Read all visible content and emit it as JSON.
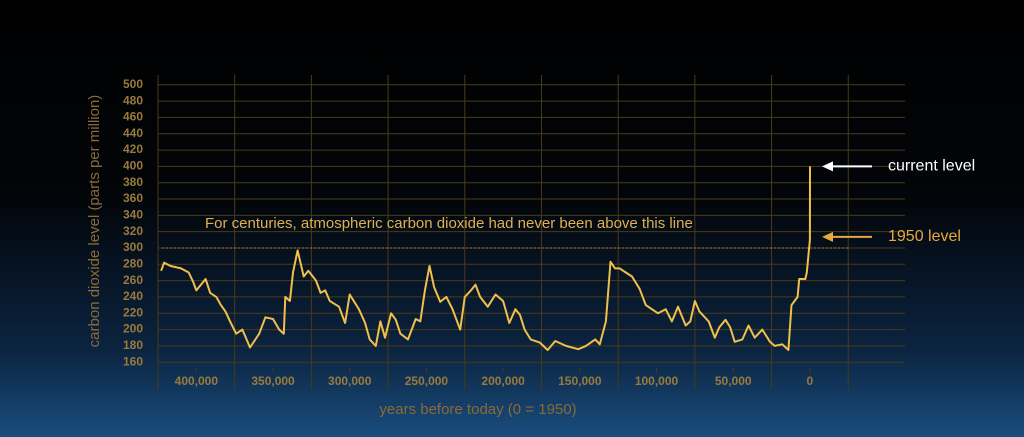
{
  "chart_data": {
    "type": "line",
    "x_label": "years before today (0 = 1950)",
    "y_label": "carbon dioxide level (parts per million)",
    "x": [
      423000,
      421000,
      417000,
      410000,
      405000,
      402000,
      400000,
      394000,
      391000,
      387000,
      384000,
      381000,
      378000,
      374000,
      370000,
      365000,
      359000,
      355000,
      350000,
      346000,
      343000,
      342000,
      339000,
      337000,
      334000,
      330000,
      327000,
      322000,
      319000,
      316000,
      313000,
      307000,
      303000,
      300000,
      294000,
      290000,
      287000,
      283000,
      280000,
      277000,
      273000,
      270000,
      267000,
      262000,
      257000,
      254000,
      251000,
      248000,
      245000,
      241000,
      237000,
      233000,
      228000,
      225000,
      221000,
      218000,
      215000,
      210000,
      205000,
      200000,
      196000,
      192000,
      189000,
      186000,
      182000,
      176000,
      171000,
      166000,
      159000,
      151000,
      146000,
      140000,
      137000,
      133000,
      130000,
      127000,
      124000,
      120000,
      116000,
      111000,
      107000,
      103000,
      99000,
      94000,
      90000,
      86000,
      81000,
      78000,
      75000,
      72000,
      66000,
      62000,
      59000,
      55000,
      52000,
      49000,
      44000,
      40000,
      36000,
      31000,
      26000,
      23000,
      18000,
      14000,
      12000,
      8000,
      7000,
      3000,
      2000,
      0,
      -65
    ],
    "series": [
      {
        "name": "carbon dioxide",
        "color": "#f0c04a",
        "values": [
          272,
          282,
          278,
          275,
          270,
          258,
          248,
          262,
          245,
          240,
          230,
          222,
          210,
          195,
          200,
          178,
          195,
          215,
          213,
          200,
          195,
          240,
          235,
          270,
          297,
          265,
          272,
          260,
          245,
          248,
          235,
          228,
          208,
          243,
          225,
          208,
          188,
          180,
          210,
          190,
          220,
          212,
          195,
          188,
          213,
          210,
          248,
          278,
          252,
          234,
          240,
          225,
          200,
          240,
          248,
          255,
          240,
          228,
          243,
          235,
          208,
          225,
          218,
          200,
          188,
          184,
          175,
          186,
          180,
          176,
          180,
          188,
          182,
          210,
          283,
          275,
          275,
          270,
          265,
          250,
          230,
          225,
          220,
          225,
          210,
          228,
          205,
          210,
          235,
          222,
          210,
          190,
          203,
          212,
          203,
          185,
          188,
          205,
          190,
          200,
          185,
          180,
          182,
          175,
          230,
          240,
          262,
          262,
          270,
          310,
          400
        ]
      }
    ],
    "xlim": [
      425000,
      -62000
    ],
    "xticks": [
      {
        "value": 400000,
        "label": "400,000"
      },
      {
        "value": 350000,
        "label": "350,000"
      },
      {
        "value": 300000,
        "label": "300,000"
      },
      {
        "value": 250000,
        "label": "250,000"
      },
      {
        "value": 200000,
        "label": "200,000"
      },
      {
        "value": 150000,
        "label": "150,000"
      },
      {
        "value": 100000,
        "label": "100,000"
      },
      {
        "value": 50000,
        "label": "50,000"
      },
      0
    ],
    "ylim": [
      148,
      512
    ],
    "yticks": [
      160,
      180,
      200,
      220,
      240,
      260,
      280,
      300,
      320,
      340,
      360,
      380,
      400,
      420,
      440,
      460,
      480,
      500
    ],
    "grid": true,
    "reference_line": 300,
    "annotations": {
      "line_note": "For centuries, atmospheric carbon dioxide had never been above this line",
      "current": "current level",
      "baseline": "1950 level"
    }
  }
}
